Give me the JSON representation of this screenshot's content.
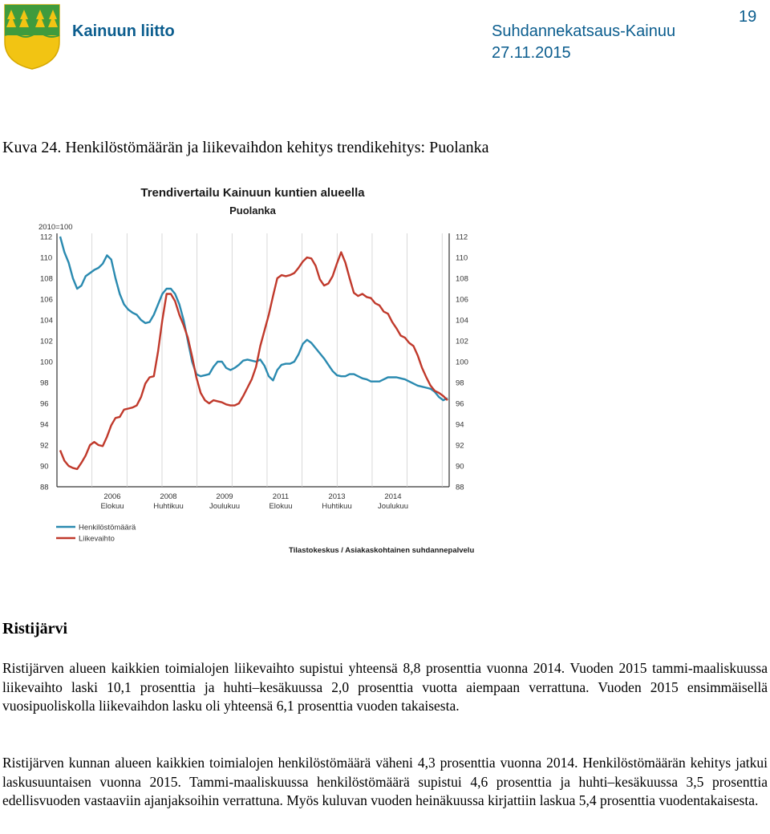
{
  "header": {
    "org": "Kainuun liitto",
    "report_title": "Suhdannekatsaus-Kainuu",
    "date": "27.11.2015",
    "page_number": "19"
  },
  "figure": {
    "caption": "Kuva 24. Henkilöstömäärän ja liikevaihdon kehitys trendikehitys: Puolanka"
  },
  "chart_data": {
    "type": "line",
    "title": "Trendivertailu Kainuun kuntien alueella",
    "subtitle": "Puolanka",
    "index_label": "2010=100",
    "ylim": [
      88,
      112
    ],
    "yticks": [
      "88",
      "90",
      "92",
      "94",
      "96",
      "98",
      "100",
      "102",
      "104",
      "106",
      "108",
      "110",
      "112"
    ],
    "xticks": [
      {
        "year": "2006",
        "month": "Elokuu"
      },
      {
        "year": "2008",
        "month": "Huhtikuu"
      },
      {
        "year": "2009",
        "month": "Joulukuu"
      },
      {
        "year": "2011",
        "month": "Elokuu"
      },
      {
        "year": "2013",
        "month": "Huhtikuu"
      },
      {
        "year": "2014",
        "month": "Joulukuu"
      }
    ],
    "grid": true,
    "legend_position": "bottom-left",
    "source": "Tilastokeskus / Asiakaskohtainen suhdannepalvelu",
    "x_start": "2005-01",
    "series": [
      {
        "name": "Henkilöstömäärä",
        "color": "#2a8ab0",
        "values": [
          112,
          110.5,
          109.5,
          108,
          107,
          107.3,
          108.2,
          108.5,
          108.8,
          109,
          109.4,
          110.2,
          109.8,
          108,
          106.5,
          105.5,
          105,
          104.7,
          104.5,
          104,
          103.7,
          103.8,
          104.5,
          105.5,
          106.5,
          107,
          107,
          106.5,
          105.5,
          104,
          102,
          100,
          98.8,
          98.6,
          98.7,
          98.8,
          99.5,
          100,
          100,
          99.4,
          99.2,
          99.4,
          99.7,
          100.1,
          100.2,
          100.1,
          100,
          100.2,
          99.6,
          98.6,
          98.2,
          99.2,
          99.7,
          99.8,
          99.8,
          100,
          100.7,
          101.7,
          102.1,
          101.8,
          101.3,
          100.8,
          100.3,
          99.7,
          99.1,
          98.7,
          98.6,
          98.6,
          98.8,
          98.8,
          98.6,
          98.4,
          98.3,
          98.1,
          98.1,
          98.1,
          98.3,
          98.5,
          98.5,
          98.5,
          98.4,
          98.3,
          98.1,
          97.9,
          97.7,
          97.6,
          97.5,
          97.4,
          97.1,
          96.6,
          96.3,
          96.5
        ]
      },
      {
        "name": "Liikevaihto",
        "color": "#c0392b",
        "values": [
          91.5,
          90.5,
          90,
          89.8,
          89.7,
          90.3,
          91,
          92,
          92.3,
          92,
          91.9,
          92.8,
          93.9,
          94.6,
          94.7,
          95.4,
          95.5,
          95.6,
          95.8,
          96.6,
          97.9,
          98.5,
          98.6,
          101,
          104,
          106.5,
          106.5,
          105.8,
          104.5,
          103.5,
          102.3,
          100.5,
          98.5,
          97,
          96.3,
          96,
          96.3,
          96.2,
          96.1,
          95.9,
          95.8,
          95.8,
          96,
          96.7,
          97.5,
          98.3,
          99.5,
          101.5,
          103,
          104.5,
          106.3,
          108,
          108.3,
          108.2,
          108.3,
          108.5,
          109,
          109.6,
          110,
          109.9,
          109.2,
          107.9,
          107.3,
          107.5,
          108.2,
          109.4,
          110.5,
          109.5,
          108,
          106.6,
          106.3,
          106.5,
          106.2,
          106.1,
          105.6,
          105.4,
          104.8,
          104.6,
          103.8,
          103.2,
          102.5,
          102.3,
          101.8,
          101.5,
          100.6,
          99.4,
          98.5,
          97.7,
          97.2,
          97,
          96.7,
          96.3
        ]
      }
    ]
  },
  "section": {
    "heading": "Ristijärvi"
  },
  "paragraphs": [
    "Ristijärven alueen kaikkien toimialojen liikevaihto supistui yhteensä 8,8 prosenttia vuonna 2014. Vuoden 2015 tammi-maaliskuussa liikevaihto laski 10,1 prosenttia ja huhti–kesäkuussa 2,0 prosenttia vuotta aiempaan verrattuna. Vuoden 2015 ensimmäisellä vuosipuoliskolla liikevaihdon lasku oli yhteensä 6,1 prosenttia vuoden takaisesta.",
    "Ristijärven kunnan alueen kaikkien toimialojen henkilöstömäärä väheni 4,3 prosenttia vuonna 2014. Henkilöstömäärän kehitys jatkui laskusuuntaisen vuonna 2015. Tammi-maaliskuussa henkilöstömäärä supistui 4,6 prosenttia ja huhti–kesäkuussa 3,5 prosenttia edellisvuoden vastaaviin ajanjaksoihin verrattuna. Myös kuluvan vuoden heinäkuussa kirjattiin laskua 5,4 prosenttia vuodentakaisesta."
  ]
}
